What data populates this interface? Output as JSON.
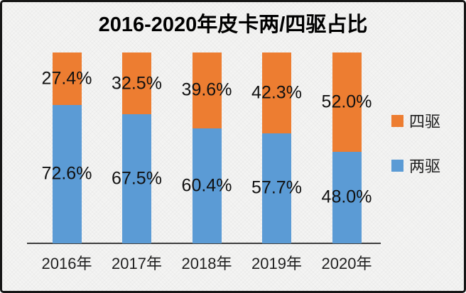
{
  "chart_data": {
    "type": "bar",
    "stacked": true,
    "title": "2016-2020年皮卡两/四驱占比",
    "categories": [
      "2016年",
      "2017年",
      "2018年",
      "2019年",
      "2020年"
    ],
    "series": [
      {
        "name": "两驱",
        "color": "#5B9BD5",
        "values": [
          72.6,
          67.5,
          60.4,
          57.7,
          48.0
        ],
        "labels": [
          "72.6%",
          "67.5%",
          "60.4%",
          "57.7%",
          "48.0%"
        ]
      },
      {
        "name": "四驱",
        "color": "#ED7D31",
        "values": [
          27.4,
          32.5,
          39.6,
          42.3,
          52.0
        ],
        "labels": [
          "27.4%",
          "32.5%",
          "39.6%",
          "42.3%",
          "52.0%"
        ]
      }
    ],
    "ylim": [
      0,
      100
    ],
    "grid": false,
    "legend_position": "right",
    "value_label_format": "percent",
    "xlabel": "",
    "ylabel": ""
  },
  "legend": {
    "items": [
      {
        "label": "四驱",
        "color": "#ED7D31"
      },
      {
        "label": "两驱",
        "color": "#5B9BD5"
      }
    ]
  },
  "colors": {
    "background": "#f4f4f3",
    "frame_border": "#161616",
    "axis_line": "#3d3d3d",
    "label_text": "#111111"
  }
}
